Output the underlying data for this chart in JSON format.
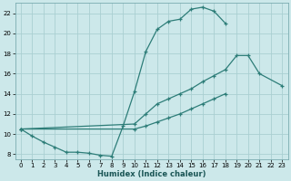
{
  "xlabel": "Humidex (Indice chaleur)",
  "bg_color": "#cce8ea",
  "grid_color": "#aacfd2",
  "line_color": "#2d7d78",
  "xlim": [
    -0.5,
    23.5
  ],
  "ylim": [
    7.5,
    23.0
  ],
  "xticks": [
    0,
    1,
    2,
    3,
    4,
    5,
    6,
    7,
    8,
    9,
    10,
    11,
    12,
    13,
    14,
    15,
    16,
    17,
    18,
    19,
    20,
    21,
    22,
    23
  ],
  "yticks": [
    8,
    10,
    12,
    14,
    16,
    18,
    20,
    22
  ],
  "curve1_x": [
    0,
    1,
    2,
    3,
    4,
    5,
    6,
    7,
    8,
    9,
    10,
    11,
    12,
    13,
    14,
    15,
    16,
    17,
    18
  ],
  "curve1_y": [
    10.5,
    9.8,
    9.2,
    8.7,
    8.2,
    8.2,
    8.1,
    7.9,
    7.8,
    10.8,
    14.2,
    18.2,
    20.4,
    21.2,
    21.4,
    22.4,
    22.6,
    22.2,
    21.0
  ],
  "curve2_x": [
    0,
    10,
    11,
    12,
    13,
    14,
    15,
    16,
    17,
    18,
    19,
    20,
    21,
    23
  ],
  "curve2_y": [
    10.5,
    11.0,
    12.0,
    13.0,
    13.5,
    14.0,
    14.5,
    15.2,
    15.8,
    16.4,
    17.8,
    17.8,
    16.0,
    14.8
  ],
  "curve3_x": [
    0,
    10,
    11,
    12,
    13,
    14,
    15,
    16,
    17,
    18
  ],
  "curve3_y": [
    10.5,
    10.5,
    10.8,
    11.2,
    11.6,
    12.0,
    12.5,
    13.0,
    13.5,
    14.0
  ]
}
